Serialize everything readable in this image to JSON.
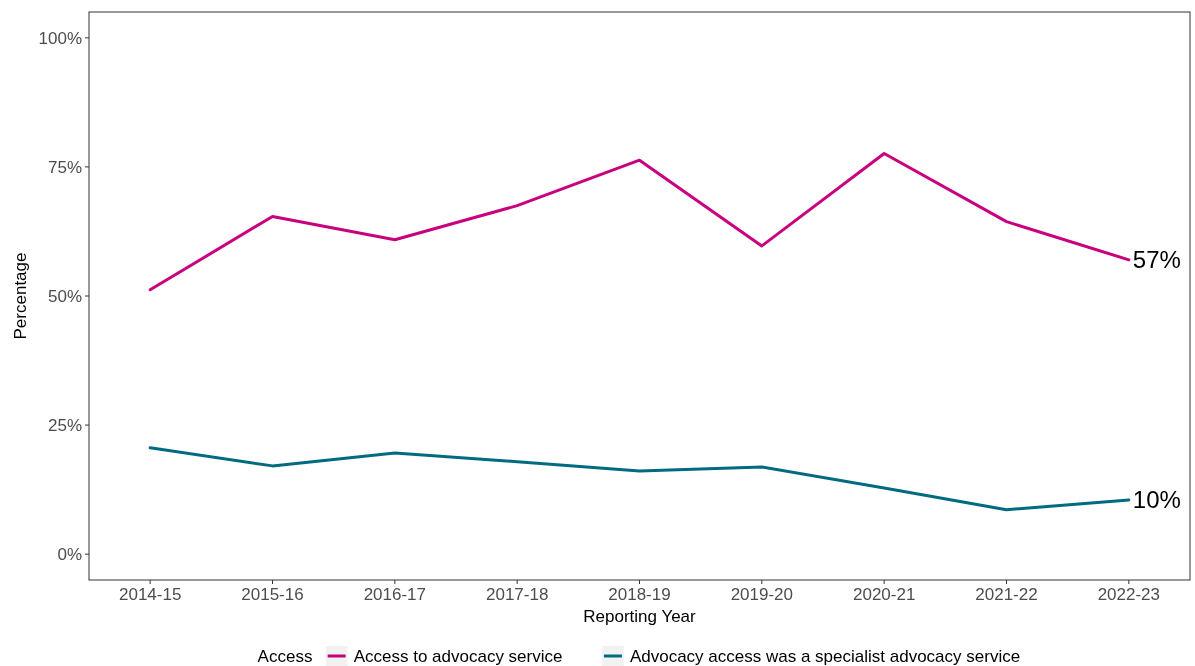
{
  "chart_data": {
    "type": "line",
    "xlabel": "Reporting Year",
    "ylabel": "Percentage",
    "legend_title": "Access",
    "legend": "bottom",
    "grid": false,
    "line_style": "solid",
    "marker": "none",
    "categories": [
      "2014-15",
      "2015-16",
      "2016-17",
      "2017-18",
      "2018-19",
      "2019-20",
      "2020-21",
      "2021-22",
      "2022-23"
    ],
    "ylim": [
      -5,
      105
    ],
    "yticks": [
      {
        "value": 0,
        "label": "0%"
      },
      {
        "value": 25,
        "label": "25%"
      },
      {
        "value": 50,
        "label": "50%"
      },
      {
        "value": 75,
        "label": "75%"
      },
      {
        "value": 100,
        "label": "100%"
      }
    ],
    "series": [
      {
        "name": "Access to advocacy service",
        "color": "#c8007f",
        "values": [
          51.2,
          65.4,
          60.9,
          67.5,
          76.3,
          59.7,
          77.6,
          64.4,
          57.0
        ],
        "value_labels": [
          null,
          null,
          null,
          null,
          null,
          null,
          null,
          null,
          "57%"
        ]
      },
      {
        "name": "Advocacy access was a specialist advocacy service",
        "color": "#006b80",
        "values": [
          20.6,
          17.1,
          19.6,
          17.9,
          16.1,
          16.9,
          12.8,
          8.6,
          10.5
        ],
        "value_labels": [
          null,
          null,
          null,
          null,
          null,
          null,
          null,
          null,
          "10%"
        ]
      }
    ]
  }
}
